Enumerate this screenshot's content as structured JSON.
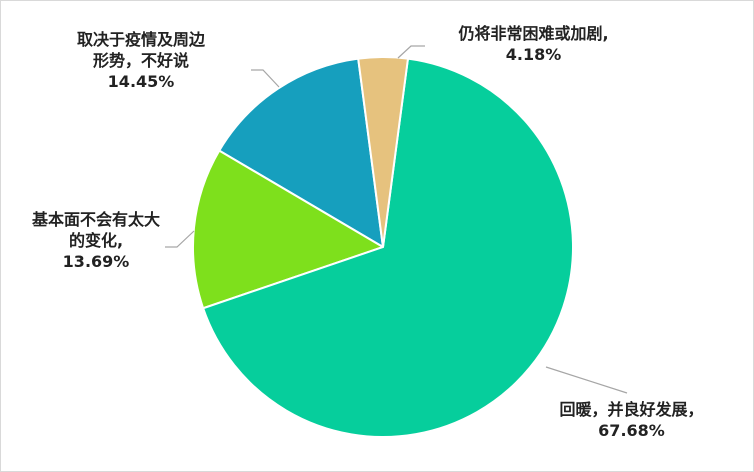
{
  "chart_data": {
    "type": "pie",
    "categories": [
      "仍将非常困难或加剧,",
      "回暖，并良好发展，",
      "基本面不会有太大的变化,",
      "取决于疫情及周边形势，不好说"
    ],
    "values": [
      4.18,
      67.68,
      13.69,
      14.45
    ],
    "value_labels": [
      "4.18%",
      "67.68%",
      "13.69%",
      "14.45%"
    ],
    "colors": [
      "#e6c27e",
      "#06ce9c",
      "#7ee01c",
      "#169fbe"
    ]
  }
}
